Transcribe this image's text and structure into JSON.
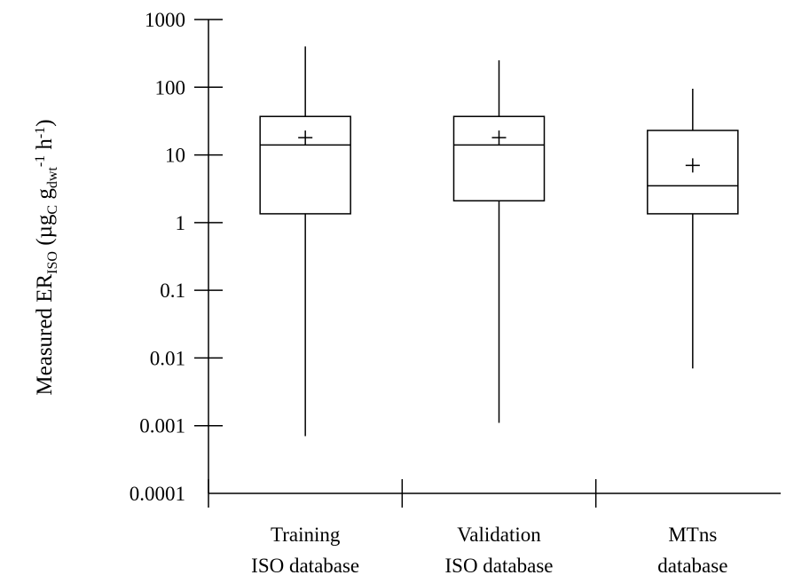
{
  "chart_data": {
    "type": "box",
    "y_scale": "log",
    "ylim": [
      0.0001,
      1000
    ],
    "yticks": [
      0.0001,
      0.001,
      0.01,
      0.1,
      1,
      10,
      100,
      1000
    ],
    "ytick_labels": [
      "0.0001",
      "0.001",
      "0.01",
      "0.1",
      "1",
      "10",
      "100",
      "1000"
    ],
    "ylabel": {
      "main": "Measured ER",
      "sub": "ISO",
      "paren_open": " (µg",
      "sub_c": "C",
      "g": " g",
      "sub_dwt": "dwt",
      "sup_neg1": "-1",
      "h": " h",
      "sup_neg1_b": "-1",
      "paren_close": ")"
    },
    "categories": [
      {
        "line1": "Training",
        "line2": "ISO database"
      },
      {
        "line1": "Validation",
        "line2": "ISO database"
      },
      {
        "line1": "MTns",
        "line2": "database"
      }
    ],
    "boxes": [
      {
        "min": 0.0007,
        "q1": 1.35,
        "median": 14,
        "q3": 37,
        "max": 400,
        "mean": 18
      },
      {
        "min": 0.0011,
        "q1": 2.1,
        "median": 14,
        "q3": 37,
        "max": 250,
        "mean": 18
      },
      {
        "min": 0.007,
        "q1": 1.35,
        "median": 3.5,
        "q3": 23,
        "max": 95,
        "mean": 7
      }
    ],
    "mean_marker": "+",
    "grid": false,
    "legend": "none"
  }
}
